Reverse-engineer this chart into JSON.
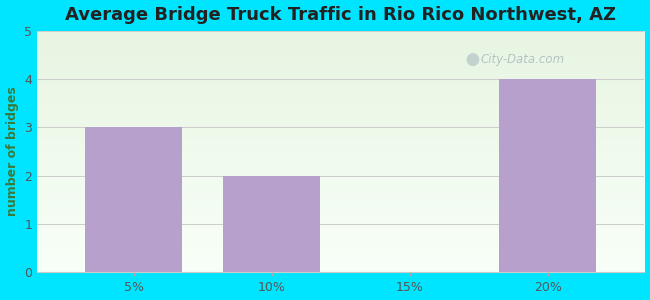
{
  "title": "Average Bridge Truck Traffic in Rio Rico Northwest, AZ",
  "categories": [
    "5%",
    "10%",
    "15%",
    "20%"
  ],
  "values": [
    3,
    2,
    0,
    4
  ],
  "bar_color": "#b8a0cc",
  "bar_positions": [
    5,
    10,
    15,
    20
  ],
  "bar_width": 3.5,
  "ylabel": "number of bridges",
  "ylim": [
    0,
    5
  ],
  "yticks": [
    0,
    1,
    2,
    3,
    4,
    5
  ],
  "xticks": [
    5,
    10,
    15,
    20
  ],
  "xticklabels": [
    "5%",
    "10%",
    "15%",
    "20%"
  ],
  "xlim": [
    1.5,
    23.5
  ],
  "background_color": "#00e5ff",
  "plot_bg_top": "#e8f5e2",
  "plot_bg_bottom": "#f8fff8",
  "title_fontsize": 13,
  "axis_label_color": "#555555",
  "tick_label_color": "#555555",
  "grid_color": "#cccccc",
  "watermark": "City-Data.com"
}
